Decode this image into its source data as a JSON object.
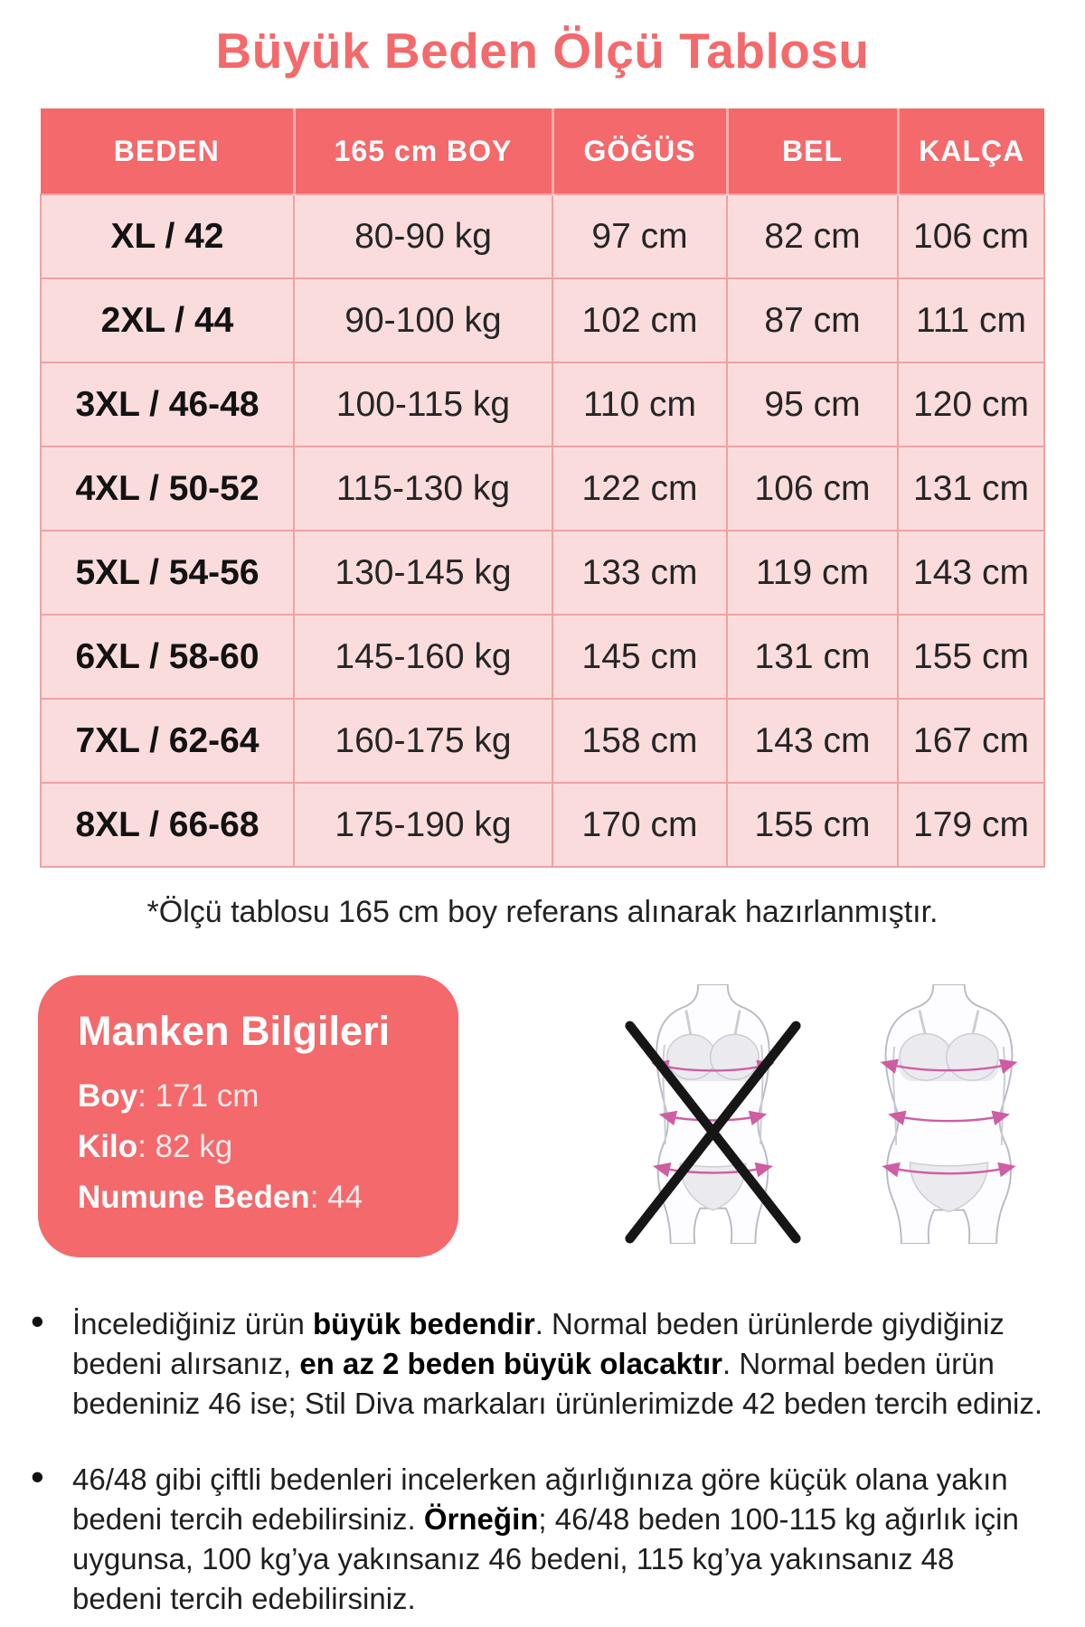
{
  "title": "Büyük Beden Ölçü Tablosu",
  "colors": {
    "accent_coral": "#f4696b",
    "row_pink": "#fbdcdc",
    "border_pink": "#eca3a4",
    "measure_line_pink": "#cf5da2",
    "text_dark": "#1e1e1e"
  },
  "size_table": {
    "headers": [
      "BEDEN",
      "165 cm BOY",
      "GÖĞÜS",
      "BEL",
      "KALÇA"
    ],
    "rows": [
      [
        "XL / 42",
        "80-90 kg",
        "97 cm",
        "82 cm",
        "106 cm"
      ],
      [
        "2XL / 44",
        "90-100 kg",
        "102 cm",
        "87 cm",
        "111 cm"
      ],
      [
        "3XL / 46-48",
        "100-115 kg",
        "110 cm",
        "95 cm",
        "120 cm"
      ],
      [
        "4XL / 50-52",
        "115-130 kg",
        "122 cm",
        "106 cm",
        "131 cm"
      ],
      [
        "5XL / 54-56",
        "130-145 kg",
        "133 cm",
        "119 cm",
        "143 cm"
      ],
      [
        "6XL / 58-60",
        "145-160 kg",
        "145 cm",
        "131 cm",
        "155 cm"
      ],
      [
        "7XL / 62-64",
        "160-175 kg",
        "158 cm",
        "143 cm",
        "167 cm"
      ],
      [
        "8XL / 66-68",
        "175-190 kg",
        "170 cm",
        "155 cm",
        "179 cm"
      ]
    ]
  },
  "footnote": "*Ölçü tablosu 165 cm boy referans alınarak hazırlanmıştır.",
  "model_info": {
    "title": "Manken Bilgileri",
    "lines": [
      {
        "label": "Boy",
        "value": ": 171 cm"
      },
      {
        "label": "Kilo",
        "value": ": 82 kg"
      },
      {
        "label": "Numune Beden",
        "value": ": 44"
      }
    ]
  },
  "figures": {
    "wrong_icon": "crossed-out-slim-body-figure",
    "correct_icon": "plus-size-body-figure"
  },
  "notes": [
    {
      "segments": [
        {
          "text": "İncelediğiniz ürün ",
          "bold": false
        },
        {
          "text": "büyük bedendir",
          "bold": true
        },
        {
          "text": ". Normal beden ürünlerde giydiğiniz bedeni alırsanız, ",
          "bold": false
        },
        {
          "text": "en az 2 beden büyük olacaktır",
          "bold": true
        },
        {
          "text": ". Normal beden ürün bedeniniz 46 ise; Stil Diva markaları ürünlerimizde 42 beden tercih ediniz.",
          "bold": false
        }
      ]
    },
    {
      "segments": [
        {
          "text": "46/48 gibi çiftli bedenleri incelerken ağırlığınıza göre küçük olana yakın bedeni tercih edebilirsiniz. ",
          "bold": false
        },
        {
          "text": "Örneğin",
          "bold": true
        },
        {
          "text": "; 46/48 beden 100-115 kg ağırlık için uygunsa, 100 kg’ya yakınsanız 46 bedeni, 115 kg’ya yakınsanız 48 bedeni tercih edebilirsiniz.",
          "bold": false
        }
      ]
    }
  ]
}
